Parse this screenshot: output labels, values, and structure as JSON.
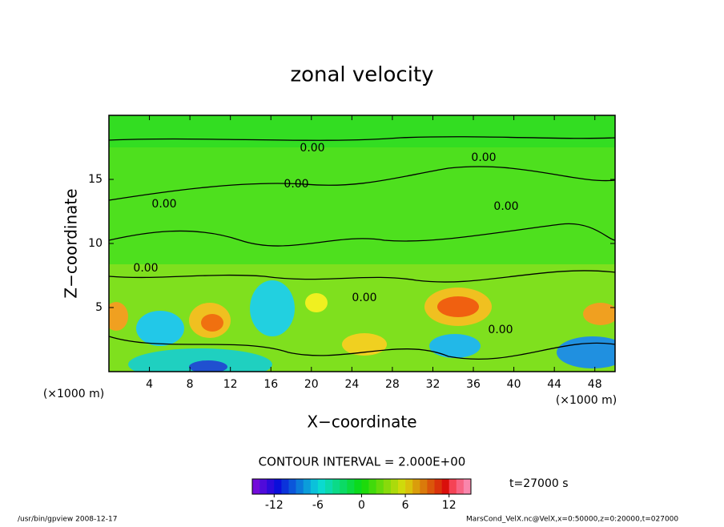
{
  "chart_data": {
    "type": "contour",
    "title": "zonal velocity",
    "x_label": "X−coordinate",
    "y_label": "Z−coordinate",
    "x_unit": "(×1000 m)",
    "y_unit": "(×1000 m)",
    "xlim": [
      0,
      50
    ],
    "xticks": [
      4,
      8,
      12,
      16,
      20,
      24,
      28,
      32,
      36,
      40,
      44,
      48
    ],
    "ylim": [
      0,
      20
    ],
    "yticks": [
      5,
      10,
      15
    ],
    "contour_labels": [
      "0.00",
      "0.00",
      "0.00",
      "0.00",
      "0.00",
      "0.00",
      "0.00",
      "0.00"
    ],
    "contour_interval": "CONTOUR INTERVAL = 2.000E+00",
    "clim": [
      -15,
      15
    ],
    "cticks": [
      -12,
      -6,
      0,
      6,
      12
    ],
    "time_label": "t=27000 s",
    "footer_left": "/usr/bin/gpview   2008-12-17",
    "footer_right": "MarsCond_VelX.nc@VelX,x=0:50000,z=0:20000,t=027000"
  }
}
